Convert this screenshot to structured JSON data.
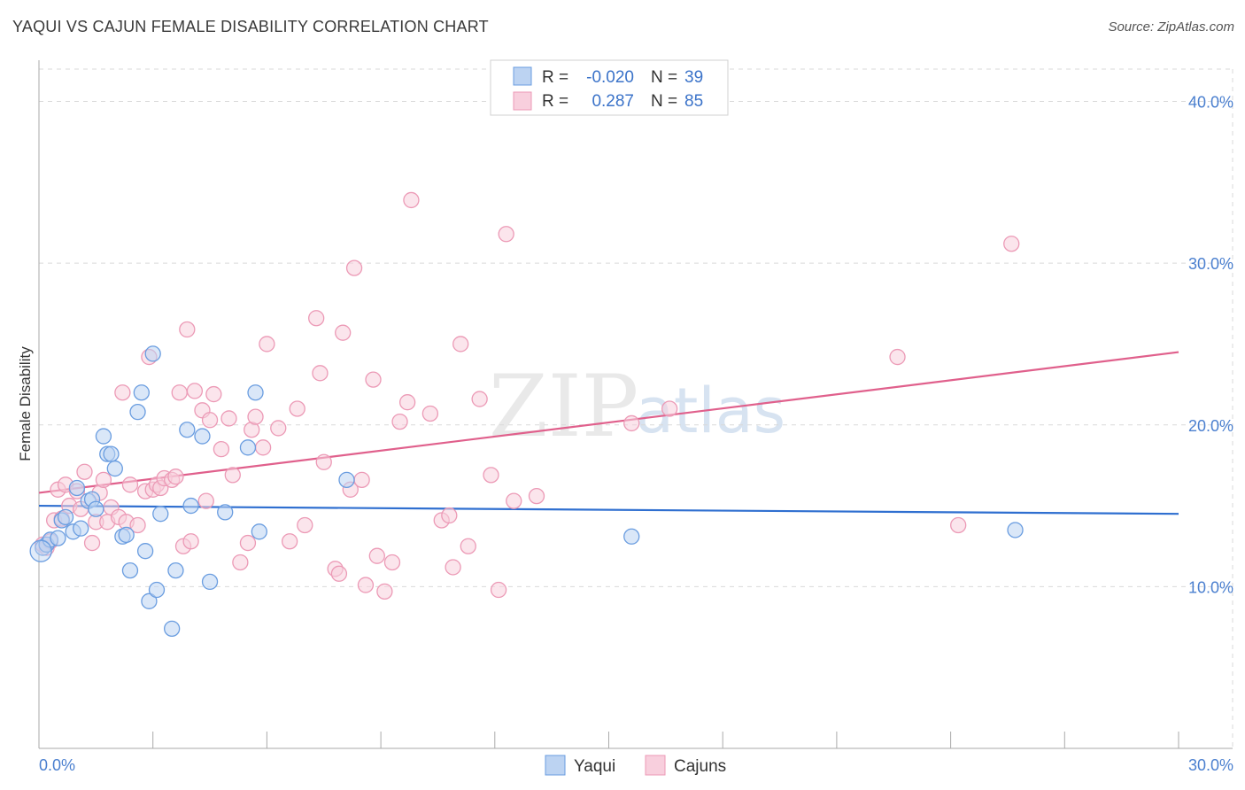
{
  "header": {
    "title": "YAQUI VS CAJUN FEMALE DISABILITY CORRELATION CHART",
    "source": "Source: ZipAtlas.com"
  },
  "watermark": {
    "zip": "ZIP",
    "atlas": "atlas"
  },
  "colors": {
    "yaqui": "#6a9de0",
    "yaqui_fill": "#bcd3f2",
    "yaqui_line": "#2f6fd0",
    "cajun": "#ec9ab6",
    "cajun_fill": "#f8cfdd",
    "cajun_line": "#e0608c",
    "tick_label": "#4a7fcf",
    "grid": "#d9d9d9"
  },
  "legend": {
    "rows": [
      {
        "r_label": "R =",
        "r_value": "-0.020",
        "n_label": "N =",
        "n_value": "39"
      },
      {
        "r_label": "R =",
        "r_value": "0.287",
        "n_label": "N =",
        "n_value": "85"
      }
    ]
  },
  "bottom_legend": {
    "yaqui": "Yaqui",
    "cajun": "Cajuns"
  },
  "chart_data": {
    "type": "scatter",
    "title": "YAQUI VS CAJUN FEMALE DISABILITY CORRELATION CHART",
    "xlabel": "",
    "ylabel": "Female Disability",
    "xlim": [
      0,
      30
    ],
    "ylim": [
      0,
      42
    ],
    "x_tick_labels": [
      "0.0%",
      "30.0%"
    ],
    "x_ticks": [
      0,
      3,
      6,
      9,
      12,
      15,
      18,
      21,
      24,
      27,
      30
    ],
    "y_ticks": [
      10,
      20,
      30,
      40
    ],
    "y_tick_labels": [
      "10.0%",
      "20.0%",
      "30.0%",
      "40.0%"
    ],
    "series": [
      {
        "name": "Yaqui",
        "r": -0.02,
        "n": 39,
        "trend": {
          "x": [
            0,
            30
          ],
          "y": [
            15.0,
            14.5
          ]
        },
        "points": [
          [
            0.1,
            12.4
          ],
          [
            0.2,
            12.6
          ],
          [
            0.3,
            12.9
          ],
          [
            0.5,
            13.0
          ],
          [
            0.6,
            14.1
          ],
          [
            0.7,
            14.3
          ],
          [
            0.9,
            13.4
          ],
          [
            1.0,
            16.1
          ],
          [
            1.1,
            13.6
          ],
          [
            1.3,
            15.3
          ],
          [
            1.4,
            15.4
          ],
          [
            1.5,
            14.8
          ],
          [
            1.7,
            19.3
          ],
          [
            1.8,
            18.2
          ],
          [
            1.9,
            18.2
          ],
          [
            2.0,
            17.3
          ],
          [
            2.2,
            13.1
          ],
          [
            2.3,
            13.2
          ],
          [
            2.4,
            11.0
          ],
          [
            2.6,
            20.8
          ],
          [
            2.7,
            22.0
          ],
          [
            2.8,
            12.2
          ],
          [
            2.9,
            9.1
          ],
          [
            3.0,
            24.4
          ],
          [
            3.1,
            9.8
          ],
          [
            3.2,
            14.5
          ],
          [
            3.5,
            7.4
          ],
          [
            3.6,
            11.0
          ],
          [
            3.9,
            19.7
          ],
          [
            4.0,
            15.0
          ],
          [
            4.3,
            19.3
          ],
          [
            4.5,
            10.3
          ],
          [
            4.9,
            14.6
          ],
          [
            5.5,
            18.6
          ],
          [
            5.7,
            22.0
          ],
          [
            5.8,
            13.4
          ],
          [
            8.1,
            16.6
          ],
          [
            15.6,
            13.1
          ],
          [
            25.7,
            13.5
          ]
        ]
      },
      {
        "name": "Cajuns",
        "r": 0.287,
        "n": 85,
        "trend": {
          "x": [
            0,
            30
          ],
          "y": [
            15.8,
            24.5
          ]
        },
        "points": [
          [
            0.1,
            12.6
          ],
          [
            0.2,
            12.4
          ],
          [
            0.3,
            12.8
          ],
          [
            0.4,
            14.1
          ],
          [
            0.5,
            16.0
          ],
          [
            0.6,
            14.2
          ],
          [
            0.7,
            16.3
          ],
          [
            0.8,
            15.0
          ],
          [
            1.0,
            15.9
          ],
          [
            1.1,
            14.8
          ],
          [
            1.2,
            17.1
          ],
          [
            1.4,
            12.7
          ],
          [
            1.5,
            14.0
          ],
          [
            1.6,
            15.8
          ],
          [
            1.7,
            16.6
          ],
          [
            1.8,
            14.0
          ],
          [
            1.9,
            14.9
          ],
          [
            2.1,
            14.3
          ],
          [
            2.2,
            22.0
          ],
          [
            2.3,
            14.0
          ],
          [
            2.4,
            16.3
          ],
          [
            2.6,
            13.8
          ],
          [
            2.8,
            15.9
          ],
          [
            2.9,
            24.2
          ],
          [
            3.0,
            16.0
          ],
          [
            3.1,
            16.3
          ],
          [
            3.2,
            16.1
          ],
          [
            3.3,
            16.7
          ],
          [
            3.5,
            16.6
          ],
          [
            3.6,
            16.8
          ],
          [
            3.7,
            22.0
          ],
          [
            3.8,
            12.5
          ],
          [
            3.9,
            25.9
          ],
          [
            4.0,
            12.8
          ],
          [
            4.1,
            22.1
          ],
          [
            4.3,
            20.9
          ],
          [
            4.4,
            15.3
          ],
          [
            4.5,
            20.3
          ],
          [
            4.6,
            21.9
          ],
          [
            4.8,
            18.5
          ],
          [
            5.0,
            20.4
          ],
          [
            5.1,
            16.9
          ],
          [
            5.3,
            11.5
          ],
          [
            5.5,
            12.7
          ],
          [
            5.6,
            19.7
          ],
          [
            5.7,
            20.5
          ],
          [
            5.9,
            18.6
          ],
          [
            6.0,
            25.0
          ],
          [
            6.3,
            19.8
          ],
          [
            6.6,
            12.8
          ],
          [
            6.8,
            21.0
          ],
          [
            7.0,
            13.8
          ],
          [
            7.3,
            26.6
          ],
          [
            7.4,
            23.2
          ],
          [
            7.5,
            17.7
          ],
          [
            7.8,
            11.1
          ],
          [
            7.9,
            10.8
          ],
          [
            8.0,
            25.7
          ],
          [
            8.2,
            16.0
          ],
          [
            8.3,
            29.7
          ],
          [
            8.5,
            16.6
          ],
          [
            8.6,
            10.1
          ],
          [
            8.8,
            22.8
          ],
          [
            8.9,
            11.9
          ],
          [
            9.1,
            9.7
          ],
          [
            9.3,
            11.5
          ],
          [
            9.5,
            20.2
          ],
          [
            9.7,
            21.4
          ],
          [
            9.8,
            33.9
          ],
          [
            10.3,
            20.7
          ],
          [
            10.6,
            14.1
          ],
          [
            10.8,
            14.4
          ],
          [
            10.9,
            11.2
          ],
          [
            11.1,
            25.0
          ],
          [
            11.3,
            12.5
          ],
          [
            11.6,
            21.6
          ],
          [
            11.9,
            16.9
          ],
          [
            12.1,
            9.8
          ],
          [
            12.3,
            31.8
          ],
          [
            12.5,
            15.3
          ],
          [
            13.1,
            15.6
          ],
          [
            15.6,
            20.1
          ],
          [
            16.6,
            21.0
          ],
          [
            22.6,
            24.2
          ],
          [
            24.2,
            13.8
          ],
          [
            25.6,
            31.2
          ]
        ]
      }
    ]
  }
}
